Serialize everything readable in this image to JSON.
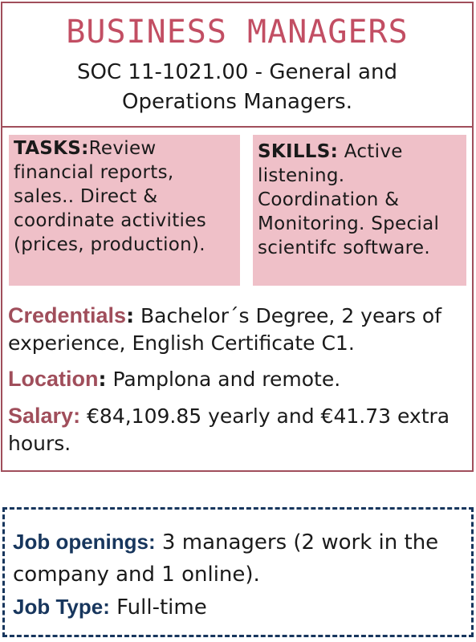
{
  "header": {
    "title": "BUSINESS MANAGERS",
    "subtitle": "SOC 11-1021.00 - General and Operations Managers."
  },
  "tasks": {
    "label": "TASKS:",
    "text": "Review financial reports, sales.. Direct & coordinate activities (prices, production)."
  },
  "skills": {
    "label": "SKILLS:",
    "text": " Active listening. Coordination & Monitoring. Special scientifc software."
  },
  "credentials": {
    "label": "Credentials",
    "colon": ":",
    "text": " Bachelor´s Degree, 2 years of experience, English Certificate C1."
  },
  "location": {
    "label": "Location",
    "colon": ":",
    "text": " Pamplona and remote."
  },
  "salary": {
    "label": "Salary:",
    "text": " €84,109.85 yearly and €41.73 extra hours."
  },
  "footer": {
    "openings_label": "Job openings:",
    "openings_text": " 3 managers (2 work in the company and 1 online).",
    "type_label": "Job Type:",
    "type_text": " Full-time"
  },
  "colors": {
    "accent": "#c24e63",
    "label": "#a04e5b",
    "box_fill": "#efc0c8",
    "footer_accent": "#17365d"
  }
}
